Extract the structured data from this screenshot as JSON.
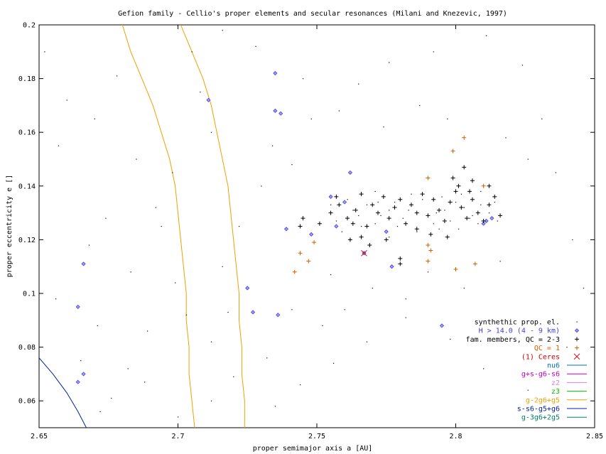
{
  "chart_data": {
    "type": "scatter",
    "title": "Gefion family - Cellio's proper elements and secular resonances (Milani and Knezevic, 1997)",
    "xlabel": "proper semimajor axis a [AU]",
    "ylabel": "proper eccentricity e []",
    "xlim": [
      2.65,
      2.85
    ],
    "ylim": [
      0.05,
      0.2
    ],
    "xticks": [
      2.65,
      2.7,
      2.75,
      2.8,
      2.85
    ],
    "xtick_labels": [
      "2.65",
      "2.7",
      "2.75",
      "2.8",
      "2.85"
    ],
    "yticks": [
      0.06,
      0.08,
      0.1,
      0.12,
      0.14,
      0.16,
      0.18,
      0.2
    ],
    "ytick_labels": [
      "0.06",
      "0.08",
      "0.1",
      "0.12",
      "0.14",
      "0.16",
      "0.18",
      "0.2"
    ],
    "grid": false,
    "legend_position": "bottom-right",
    "series": [
      {
        "name": "synthethic prop. el.",
        "marker": "dot",
        "color": "#000000",
        "points": [
          [
            2.652,
            0.19
          ],
          [
            2.66,
            0.172
          ],
          [
            2.657,
            0.155
          ],
          [
            2.67,
            0.165
          ],
          [
            2.678,
            0.181
          ],
          [
            2.685,
            0.15
          ],
          [
            2.692,
            0.132
          ],
          [
            2.674,
            0.128
          ],
          [
            2.668,
            0.118
          ],
          [
            2.656,
            0.098
          ],
          [
            2.671,
            0.088
          ],
          [
            2.665,
            0.075
          ],
          [
            2.676,
            0.061
          ],
          [
            2.688,
            0.067
          ],
          [
            2.672,
            0.056
          ],
          [
            2.699,
            0.104
          ],
          [
            2.703,
            0.092
          ],
          [
            2.712,
            0.082
          ],
          [
            2.716,
            0.11
          ],
          [
            2.722,
            0.125
          ],
          [
            2.73,
            0.14
          ],
          [
            2.734,
            0.155
          ],
          [
            2.741,
            0.148
          ],
          [
            2.748,
            0.165
          ],
          [
            2.745,
            0.18
          ],
          [
            2.728,
            0.192
          ],
          [
            2.716,
            0.198
          ],
          [
            2.705,
            0.19
          ],
          [
            2.708,
            0.175
          ],
          [
            2.712,
            0.16
          ],
          [
            2.735,
            0.058
          ],
          [
            2.744,
            0.066
          ],
          [
            2.756,
            0.074
          ],
          [
            2.768,
            0.082
          ],
          [
            2.782,
            0.091
          ],
          [
            2.798,
            0.083
          ],
          [
            2.81,
            0.072
          ],
          [
            2.826,
            0.064
          ],
          [
            2.84,
            0.08
          ],
          [
            2.846,
            0.102
          ],
          [
            2.842,
            0.12
          ],
          [
            2.836,
            0.145
          ],
          [
            2.831,
            0.165
          ],
          [
            2.824,
            0.185
          ],
          [
            2.811,
            0.196
          ],
          [
            2.792,
            0.19
          ],
          [
            2.776,
            0.186
          ],
          [
            2.765,
            0.178
          ],
          [
            2.758,
            0.168
          ],
          [
            2.774,
            0.162
          ],
          [
            2.787,
            0.17
          ],
          [
            2.797,
            0.165
          ],
          [
            2.818,
            0.158
          ],
          [
            2.826,
            0.15
          ],
          [
            2.816,
            0.112
          ],
          [
            2.803,
            0.102
          ],
          [
            2.79,
            0.108
          ],
          [
            2.782,
            0.098
          ],
          [
            2.77,
            0.102
          ],
          [
            2.76,
            0.094
          ],
          [
            2.752,
            0.088
          ],
          [
            2.741,
            0.094
          ],
          [
            2.732,
            0.076
          ],
          [
            2.72,
            0.069
          ],
          [
            2.718,
            0.093
          ],
          [
            2.694,
            0.125
          ],
          [
            2.698,
            0.145
          ],
          [
            2.683,
            0.108
          ],
          [
            2.689,
            0.086
          ],
          [
            2.682,
            0.072
          ],
          [
            2.7,
            0.054
          ],
          [
            2.712,
            0.06
          ],
          [
            2.755,
            0.107
          ],
          [
            2.762,
            0.12
          ],
          [
            2.771,
            0.126
          ],
          [
            2.776,
            0.121
          ],
          [
            2.781,
            0.128
          ],
          [
            2.786,
            0.123
          ],
          [
            2.792,
            0.126
          ],
          [
            2.796,
            0.131
          ],
          [
            2.801,
            0.124
          ],
          [
            2.806,
            0.129
          ],
          [
            2.809,
            0.133
          ],
          [
            2.763,
            0.131
          ],
          [
            2.768,
            0.133
          ],
          [
            2.773,
            0.129
          ],
          [
            2.778,
            0.134
          ],
          [
            2.783,
            0.131
          ],
          [
            2.788,
            0.135
          ],
          [
            2.793,
            0.13
          ],
          [
            2.798,
            0.127
          ],
          [
            2.803,
            0.132
          ],
          [
            2.808,
            0.126
          ],
          [
            2.757,
            0.127
          ],
          [
            2.761,
            0.135
          ],
          [
            2.766,
            0.125
          ],
          [
            2.771,
            0.138
          ],
          [
            2.776,
            0.131
          ],
          [
            2.784,
            0.137
          ],
          [
            2.79,
            0.129
          ],
          [
            2.795,
            0.136
          ],
          [
            2.8,
            0.134
          ],
          [
            2.805,
            0.128
          ],
          [
            2.812,
            0.13
          ],
          [
            2.815,
            0.127
          ],
          [
            2.755,
            0.133
          ],
          [
            2.759,
            0.123
          ],
          [
            2.765,
            0.129
          ],
          [
            2.772,
            0.134
          ],
          [
            2.779,
            0.125
          ],
          [
            2.786,
            0.13
          ],
          [
            2.794,
            0.124
          ],
          [
            2.802,
            0.137
          ],
          [
            2.809,
            0.138
          ],
          [
            2.814,
            0.134
          ]
        ]
      },
      {
        "name": "H > 14.0 (4 - 9 km)",
        "marker": "diamond",
        "color": "#4040e0",
        "points": [
          [
            2.666,
            0.111
          ],
          [
            2.664,
            0.095
          ],
          [
            2.666,
            0.07
          ],
          [
            2.664,
            0.067
          ],
          [
            2.711,
            0.172
          ],
          [
            2.735,
            0.182
          ],
          [
            2.735,
            0.168
          ],
          [
            2.737,
            0.167
          ],
          [
            2.739,
            0.124
          ],
          [
            2.736,
            0.092
          ],
          [
            2.727,
            0.093
          ],
          [
            2.725,
            0.102
          ],
          [
            2.748,
            0.122
          ],
          [
            2.755,
            0.136
          ],
          [
            2.762,
            0.145
          ],
          [
            2.757,
            0.125
          ],
          [
            2.76,
            0.134
          ],
          [
            2.767,
            0.115
          ],
          [
            2.775,
            0.123
          ],
          [
            2.777,
            0.11
          ],
          [
            2.795,
            0.088
          ],
          [
            2.81,
            0.126
          ],
          [
            2.811,
            0.127
          ],
          [
            2.813,
            0.128
          ]
        ]
      },
      {
        "name": "fam. members, QC = 2-3",
        "marker": "plus",
        "color": "#000000",
        "points": [
          [
            2.755,
            0.13
          ],
          [
            2.758,
            0.133
          ],
          [
            2.761,
            0.128
          ],
          [
            2.763,
            0.126
          ],
          [
            2.757,
            0.136
          ],
          [
            2.764,
            0.131
          ],
          [
            2.766,
            0.137
          ],
          [
            2.768,
            0.125
          ],
          [
            2.77,
            0.133
          ],
          [
            2.772,
            0.13
          ],
          [
            2.774,
            0.136
          ],
          [
            2.776,
            0.128
          ],
          [
            2.778,
            0.132
          ],
          [
            2.78,
            0.135
          ],
          [
            2.782,
            0.126
          ],
          [
            2.784,
            0.133
          ],
          [
            2.786,
            0.13
          ],
          [
            2.788,
            0.137
          ],
          [
            2.79,
            0.129
          ],
          [
            2.792,
            0.135
          ],
          [
            2.794,
            0.131
          ],
          [
            2.796,
            0.127
          ],
          [
            2.798,
            0.134
          ],
          [
            2.8,
            0.138
          ],
          [
            2.802,
            0.132
          ],
          [
            2.804,
            0.128
          ],
          [
            2.806,
            0.135
          ],
          [
            2.808,
            0.13
          ],
          [
            2.81,
            0.127
          ],
          [
            2.812,
            0.133
          ],
          [
            2.814,
            0.136
          ],
          [
            2.816,
            0.129
          ],
          [
            2.766,
            0.121
          ],
          [
            2.769,
            0.118
          ],
          [
            2.775,
            0.12
          ],
          [
            2.78,
            0.113
          ],
          [
            2.78,
            0.111
          ],
          [
            2.786,
            0.124
          ],
          [
            2.791,
            0.122
          ],
          [
            2.797,
            0.121
          ],
          [
            2.801,
            0.14
          ],
          [
            2.803,
            0.147
          ],
          [
            2.799,
            0.143
          ],
          [
            2.805,
            0.138
          ],
          [
            2.806,
            0.142
          ],
          [
            2.812,
            0.14
          ],
          [
            2.745,
            0.128
          ],
          [
            2.744,
            0.125
          ],
          [
            2.751,
            0.126
          ],
          [
            2.762,
            0.12
          ]
        ]
      },
      {
        "name": "QC = 1",
        "marker": "plus",
        "color": "#d06000",
        "points": [
          [
            2.742,
            0.108
          ],
          [
            2.744,
            0.115
          ],
          [
            2.747,
            0.112
          ],
          [
            2.749,
            0.119
          ],
          [
            2.79,
            0.143
          ],
          [
            2.79,
            0.112
          ],
          [
            2.79,
            0.118
          ],
          [
            2.791,
            0.116
          ],
          [
            2.799,
            0.153
          ],
          [
            2.803,
            0.158
          ],
          [
            2.8,
            0.109
          ],
          [
            2.81,
            0.14
          ],
          [
            2.807,
            0.111
          ]
        ]
      },
      {
        "name": "(1) Ceres",
        "marker": "x",
        "color": "#d00000",
        "points": [
          [
            2.767,
            0.115
          ]
        ]
      },
      {
        "name": "nu6",
        "marker": "line",
        "color": "#0070c0",
        "points": []
      },
      {
        "name": "g+s-g6-s6",
        "marker": "line",
        "color": "#c000c0",
        "points": []
      },
      {
        "name": "z2",
        "marker": "line",
        "color": "#e080e0",
        "points": []
      },
      {
        "name": "z3",
        "marker": "line",
        "color": "#00c000",
        "points": []
      },
      {
        "name": "g-2g6+g5",
        "marker": "line",
        "color": "#f0a000",
        "curves": [
          [
            [
              2.68,
              0.2
            ],
            [
              2.683,
              0.19
            ],
            [
              2.687,
              0.18
            ],
            [
              2.691,
              0.17
            ],
            [
              2.694,
              0.16
            ],
            [
              2.697,
              0.15
            ],
            [
              2.699,
              0.14
            ],
            [
              2.7,
              0.13
            ],
            [
              2.701,
              0.12
            ],
            [
              2.702,
              0.11
            ],
            [
              2.703,
              0.1
            ],
            [
              2.703,
              0.09
            ],
            [
              2.704,
              0.08
            ],
            [
              2.704,
              0.07
            ],
            [
              2.705,
              0.06
            ],
            [
              2.706,
              0.05
            ]
          ],
          [
            [
              2.701,
              0.2
            ],
            [
              2.705,
              0.19
            ],
            [
              2.709,
              0.18
            ],
            [
              2.712,
              0.17
            ],
            [
              2.714,
              0.16
            ],
            [
              2.716,
              0.15
            ],
            [
              2.718,
              0.14
            ],
            [
              2.719,
              0.13
            ],
            [
              2.72,
              0.12
            ],
            [
              2.721,
              0.11
            ],
            [
              2.722,
              0.1
            ],
            [
              2.722,
              0.09
            ],
            [
              2.723,
              0.08
            ],
            [
              2.723,
              0.07
            ],
            [
              2.724,
              0.06
            ],
            [
              2.724,
              0.05
            ]
          ]
        ]
      },
      {
        "name": "s-s6-g5+g6",
        "marker": "line",
        "color": "#0020a0",
        "curves": [
          [
            [
              2.65,
              0.076
            ],
            [
              2.655,
              0.07
            ],
            [
              2.66,
              0.063
            ],
            [
              2.664,
              0.056
            ],
            [
              2.667,
              0.05
            ]
          ]
        ]
      },
      {
        "name": "g-3g6+2g5",
        "marker": "line",
        "color": "#008060",
        "points": []
      }
    ]
  }
}
